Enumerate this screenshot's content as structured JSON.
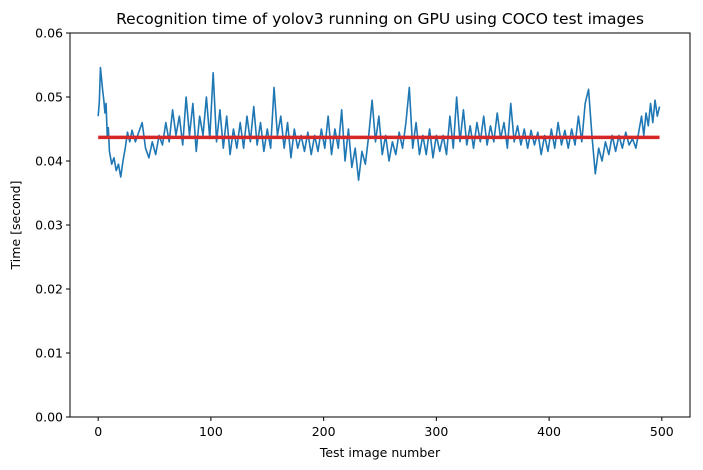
{
  "chart_data": {
    "type": "line",
    "title": "Recognition time of yolov3 running on GPU using COCO test images",
    "xlabel": "Test image number",
    "ylabel": "Time [second]",
    "xlim": [
      -25,
      525
    ],
    "ylim": [
      0.0,
      0.06
    ],
    "xticks": [
      0,
      100,
      200,
      300,
      400,
      500
    ],
    "xtick_labels": [
      "0",
      "100",
      "200",
      "300",
      "400",
      "500"
    ],
    "yticks": [
      0.0,
      0.01,
      0.02,
      0.03,
      0.04,
      0.05,
      0.06
    ],
    "ytick_labels": [
      "0.00",
      "0.01",
      "0.02",
      "0.03",
      "0.04",
      "0.05",
      "0.06"
    ],
    "grid": false,
    "legend": "none",
    "series": [
      {
        "color": "#1f77b4",
        "points": [
          [
            0,
            0.047
          ],
          [
            1,
            0.0492
          ],
          [
            2,
            0.0546
          ],
          [
            3,
            0.0528
          ],
          [
            4,
            0.051
          ],
          [
            5,
            0.0495
          ],
          [
            6,
            0.0475
          ],
          [
            7,
            0.049
          ],
          [
            8,
            0.044
          ],
          [
            9,
            0.0452
          ],
          [
            10,
            0.0415
          ],
          [
            12,
            0.0395
          ],
          [
            14,
            0.0405
          ],
          [
            16,
            0.0385
          ],
          [
            18,
            0.0395
          ],
          [
            20,
            0.0375
          ],
          [
            22,
            0.04
          ],
          [
            24,
            0.042
          ],
          [
            26,
            0.0445
          ],
          [
            28,
            0.043
          ],
          [
            30,
            0.0448
          ],
          [
            33,
            0.043
          ],
          [
            36,
            0.0445
          ],
          [
            39,
            0.046
          ],
          [
            42,
            0.042
          ],
          [
            45,
            0.0405
          ],
          [
            48,
            0.043
          ],
          [
            51,
            0.041
          ],
          [
            54,
            0.044
          ],
          [
            57,
            0.0425
          ],
          [
            60,
            0.046
          ],
          [
            63,
            0.043
          ],
          [
            66,
            0.048
          ],
          [
            69,
            0.044
          ],
          [
            72,
            0.047
          ],
          [
            75,
            0.0425
          ],
          [
            78,
            0.05
          ],
          [
            81,
            0.044
          ],
          [
            84,
            0.049
          ],
          [
            87,
            0.0415
          ],
          [
            90,
            0.047
          ],
          [
            93,
            0.044
          ],
          [
            96,
            0.05
          ],
          [
            99,
            0.0435
          ],
          [
            102,
            0.0538
          ],
          [
            105,
            0.043
          ],
          [
            108,
            0.048
          ],
          [
            111,
            0.042
          ],
          [
            114,
            0.047
          ],
          [
            117,
            0.041
          ],
          [
            120,
            0.045
          ],
          [
            123,
            0.042
          ],
          [
            126,
            0.046
          ],
          [
            129,
            0.042
          ],
          [
            132,
            0.047
          ],
          [
            135,
            0.043
          ],
          [
            138,
            0.0485
          ],
          [
            141,
            0.0425
          ],
          [
            144,
            0.046
          ],
          [
            147,
            0.0415
          ],
          [
            150,
            0.045
          ],
          [
            153,
            0.042
          ],
          [
            156,
            0.0515
          ],
          [
            159,
            0.044
          ],
          [
            162,
            0.047
          ],
          [
            165,
            0.042
          ],
          [
            168,
            0.046
          ],
          [
            171,
            0.0405
          ],
          [
            174,
            0.045
          ],
          [
            177,
            0.042
          ],
          [
            180,
            0.044
          ],
          [
            183,
            0.0415
          ],
          [
            186,
            0.0445
          ],
          [
            189,
            0.041
          ],
          [
            192,
            0.044
          ],
          [
            195,
            0.0415
          ],
          [
            198,
            0.045
          ],
          [
            201,
            0.042
          ],
          [
            204,
            0.047
          ],
          [
            207,
            0.041
          ],
          [
            210,
            0.045
          ],
          [
            213,
            0.042
          ],
          [
            216,
            0.048
          ],
          [
            219,
            0.04
          ],
          [
            222,
            0.045
          ],
          [
            225,
            0.039
          ],
          [
            228,
            0.042
          ],
          [
            231,
            0.037
          ],
          [
            234,
            0.0415
          ],
          [
            237,
            0.0395
          ],
          [
            240,
            0.044
          ],
          [
            243,
            0.0495
          ],
          [
            246,
            0.043
          ],
          [
            249,
            0.047
          ],
          [
            252,
            0.041
          ],
          [
            255,
            0.044
          ],
          [
            258,
            0.04
          ],
          [
            261,
            0.043
          ],
          [
            264,
            0.041
          ],
          [
            267,
            0.0445
          ],
          [
            270,
            0.042
          ],
          [
            273,
            0.046
          ],
          [
            276,
            0.0515
          ],
          [
            279,
            0.042
          ],
          [
            282,
            0.046
          ],
          [
            285,
            0.041
          ],
          [
            288,
            0.044
          ],
          [
            291,
            0.041
          ],
          [
            294,
            0.045
          ],
          [
            297,
            0.0405
          ],
          [
            300,
            0.044
          ],
          [
            303,
            0.0415
          ],
          [
            306,
            0.044
          ],
          [
            309,
            0.041
          ],
          [
            312,
            0.047
          ],
          [
            315,
            0.042
          ],
          [
            318,
            0.05
          ],
          [
            321,
            0.043
          ],
          [
            324,
            0.048
          ],
          [
            327,
            0.0425
          ],
          [
            330,
            0.0455
          ],
          [
            333,
            0.042
          ],
          [
            336,
            0.046
          ],
          [
            339,
            0.043
          ],
          [
            342,
            0.047
          ],
          [
            345,
            0.0425
          ],
          [
            348,
            0.0455
          ],
          [
            351,
            0.043
          ],
          [
            354,
            0.0475
          ],
          [
            357,
            0.0435
          ],
          [
            360,
            0.046
          ],
          [
            363,
            0.042
          ],
          [
            366,
            0.049
          ],
          [
            369,
            0.043
          ],
          [
            372,
            0.0455
          ],
          [
            375,
            0.0425
          ],
          [
            378,
            0.045
          ],
          [
            381,
            0.042
          ],
          [
            384,
            0.0448
          ],
          [
            387,
            0.0425
          ],
          [
            390,
            0.0445
          ],
          [
            393,
            0.041
          ],
          [
            396,
            0.044
          ],
          [
            399,
            0.0415
          ],
          [
            402,
            0.045
          ],
          [
            405,
            0.042
          ],
          [
            408,
            0.046
          ],
          [
            411,
            0.0425
          ],
          [
            414,
            0.0448
          ],
          [
            417,
            0.042
          ],
          [
            420,
            0.045
          ],
          [
            423,
            0.0425
          ],
          [
            426,
            0.047
          ],
          [
            429,
            0.043
          ],
          [
            432,
            0.049
          ],
          [
            435,
            0.0512
          ],
          [
            438,
            0.044
          ],
          [
            441,
            0.038
          ],
          [
            444,
            0.042
          ],
          [
            447,
            0.04
          ],
          [
            450,
            0.043
          ],
          [
            453,
            0.041
          ],
          [
            456,
            0.044
          ],
          [
            459,
            0.0415
          ],
          [
            462,
            0.044
          ],
          [
            465,
            0.042
          ],
          [
            468,
            0.0445
          ],
          [
            471,
            0.0425
          ],
          [
            474,
            0.0435
          ],
          [
            477,
            0.042
          ],
          [
            480,
            0.045
          ],
          [
            482,
            0.047
          ],
          [
            484,
            0.044
          ],
          [
            486,
            0.0475
          ],
          [
            488,
            0.0455
          ],
          [
            490,
            0.049
          ],
          [
            492,
            0.046
          ],
          [
            494,
            0.0495
          ],
          [
            496,
            0.047
          ],
          [
            498,
            0.0485
          ]
        ]
      },
      {
        "color": "#d62728",
        "points": [
          [
            0,
            0.0437
          ],
          [
            498,
            0.0437
          ]
        ]
      }
    ]
  }
}
